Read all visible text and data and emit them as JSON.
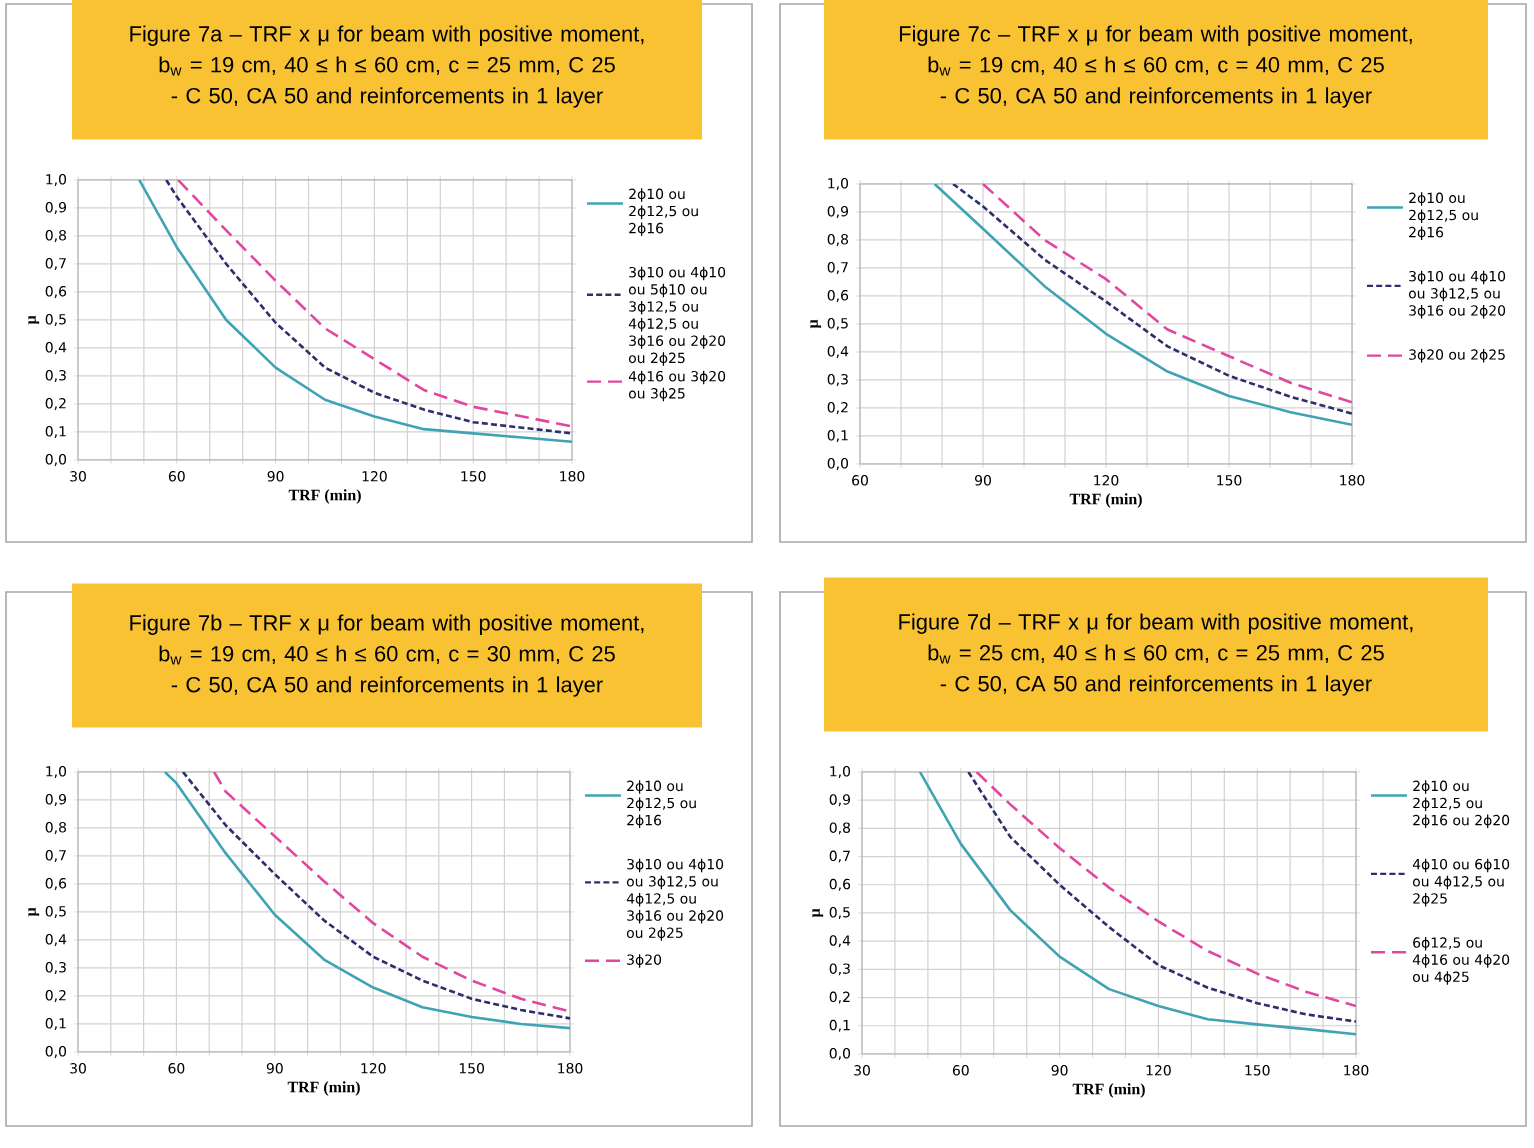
{
  "chart_data": [
    {
      "type": "line",
      "title": "Figure 7a – TRF x μ for beam with positive moment, b$_{w}$ = 19 cm, 40 ≤ h ≤ 60 cm, c = 25 mm, C 25 - C 50, CA 50 and reinforcements in 1 layer",
      "xlabel": "TRF (min)",
      "ylabel": "μ",
      "xlim": [
        30,
        180
      ],
      "ylim": [
        0,
        1
      ],
      "xticks": [
        30,
        {
          "value": 40,
          "label": null
        },
        {
          "value": 50,
          "label": null
        },
        60,
        {
          "value": 70,
          "label": null
        },
        {
          "value": 80,
          "label": null
        },
        90,
        {
          "value": 100,
          "label": null
        },
        {
          "value": 110,
          "label": null
        },
        120,
        {
          "value": 130,
          "label": null
        },
        {
          "value": 140,
          "label": null
        },
        150,
        {
          "value": 160,
          "label": null
        },
        {
          "value": 170,
          "label": null
        },
        180
      ],
      "yticks": [
        {
          "value": 0,
          "label": "0,0"
        },
        {
          "value": 0.1,
          "label": "0,1"
        },
        {
          "value": 0.2,
          "label": "0,2"
        },
        {
          "value": 0.3,
          "label": "0,3"
        },
        {
          "value": 0.4,
          "label": "0,4"
        },
        {
          "value": 0.5,
          "label": "0,5"
        },
        {
          "value": 0.6,
          "label": "0,6"
        },
        {
          "value": 0.7,
          "label": "0,7"
        },
        {
          "value": 0.8,
          "label": "0,8"
        },
        {
          "value": 0.9,
          "label": "0,9"
        },
        {
          "value": 1.0,
          "label": "1,0"
        }
      ],
      "grid": true,
      "legend": "right",
      "series": [
        {
          "name": "2ϕ10 ou 2ϕ12,5 ou 2ϕ16",
          "color": "#3fa3b4",
          "line_style": "solid",
          "x": [
            48.6,
            60,
            75,
            90,
            105,
            120,
            135,
            150,
            165,
            180
          ],
          "values": [
            1.0,
            0.76,
            0.5,
            0.33,
            0.215,
            0.155,
            0.11,
            0.095,
            0.08,
            0.065
          ]
        },
        {
          "name": "3ϕ10 ou 4ϕ10 ou 5ϕ10 ou 3ϕ12,5 ou 4ϕ12,5 ou 3ϕ16 ou 2ϕ20 ou 2ϕ25",
          "color": "#2f2d6b",
          "line_style": "dashed",
          "x": [
            56.8,
            60,
            75,
            90,
            105,
            120,
            135,
            150,
            165,
            180
          ],
          "values": [
            1.0,
            0.94,
            0.7,
            0.49,
            0.33,
            0.24,
            0.18,
            0.135,
            0.115,
            0.095
          ]
        },
        {
          "name": "4ϕ16 ou 3ϕ20 ou 3ϕ25",
          "color": "#e0479e",
          "line_style": "dashed",
          "x": [
            60.4,
            75,
            90,
            105,
            120,
            135,
            150,
            165,
            180
          ],
          "values": [
            1.0,
            0.82,
            0.64,
            0.47,
            0.36,
            0.25,
            0.19,
            0.155,
            0.12
          ]
        }
      ]
    },
    {
      "type": "line",
      "title": "Figure 7c – TRF x μ for beam with positive moment, b$_{w}$ = 19 cm, 40 ≤ h ≤ 60 cm, c = 40 mm, C 25 - C 50, CA 50 and reinforcements in 1 layer",
      "xlabel": "TRF (min)",
      "ylabel": "μ",
      "xlim": [
        60,
        180
      ],
      "ylim": [
        0,
        1
      ],
      "xticks": [
        60,
        {
          "value": 70,
          "label": null
        },
        {
          "value": 80,
          "label": null
        },
        90,
        {
          "value": 100,
          "label": null
        },
        {
          "value": 110,
          "label": null
        },
        120,
        {
          "value": 130,
          "label": null
        },
        {
          "value": 140,
          "label": null
        },
        150,
        {
          "value": 160,
          "label": null
        },
        {
          "value": 170,
          "label": null
        },
        180
      ],
      "yticks": [
        {
          "value": 0,
          "label": "0,0"
        },
        {
          "value": 0.1,
          "label": "0,1"
        },
        {
          "value": 0.2,
          "label": "0,2"
        },
        {
          "value": 0.3,
          "label": "0,3"
        },
        {
          "value": 0.4,
          "label": "0,4"
        },
        {
          "value": 0.5,
          "label": "0,5"
        },
        {
          "value": 0.6,
          "label": "0,6"
        },
        {
          "value": 0.7,
          "label": "0,7"
        },
        {
          "value": 0.8,
          "label": "0,8"
        },
        {
          "value": 0.9,
          "label": "0,9"
        },
        {
          "value": 1.0,
          "label": "1,0"
        }
      ],
      "grid": true,
      "legend": "right",
      "series": [
        {
          "name": "2ϕ10 ou 2ϕ12,5 ou 2ϕ16",
          "color": "#3fa3b4",
          "line_style": "solid",
          "x": [
            78.2,
            90,
            105,
            120,
            135,
            150,
            165,
            180
          ],
          "values": [
            1.0,
            0.84,
            0.635,
            0.465,
            0.33,
            0.243,
            0.185,
            0.14
          ]
        },
        {
          "name": "3ϕ10 ou 4ϕ10 ou 3ϕ12,5 ou 3ϕ16 ou 2ϕ20",
          "color": "#2f2d6b",
          "line_style": "dashed",
          "x": [
            82.7,
            90,
            105,
            120,
            135,
            150,
            165,
            180
          ],
          "values": [
            1.0,
            0.92,
            0.73,
            0.58,
            0.42,
            0.315,
            0.24,
            0.18
          ]
        },
        {
          "name": "3ϕ20 ou 2ϕ25",
          "color": "#e0479e",
          "line_style": "dashed",
          "x": [
            90,
            105,
            120,
            135,
            150,
            165,
            180
          ],
          "values": [
            1.0,
            0.8,
            0.66,
            0.48,
            0.385,
            0.29,
            0.22
          ]
        }
      ]
    },
    {
      "type": "line",
      "title": "Figure 7b – TRF x μ for beam with positive moment, b$_{w}$ = 19 cm, 40 ≤ h ≤ 60 cm, c = 30 mm, C 25 - C 50, CA 50 and reinforcements in 1 layer",
      "xlabel": "TRF (min)",
      "ylabel": "μ",
      "xlim": [
        30,
        180
      ],
      "ylim": [
        0,
        1
      ],
      "xticks": [
        30,
        {
          "value": 40,
          "label": null
        },
        {
          "value": 50,
          "label": null
        },
        60,
        {
          "value": 70,
          "label": null
        },
        {
          "value": 80,
          "label": null
        },
        90,
        {
          "value": 100,
          "label": null
        },
        {
          "value": 110,
          "label": null
        },
        120,
        {
          "value": 130,
          "label": null
        },
        {
          "value": 140,
          "label": null
        },
        150,
        {
          "value": 160,
          "label": null
        },
        {
          "value": 170,
          "label": null
        },
        180
      ],
      "yticks": [
        {
          "value": 0,
          "label": "0,0"
        },
        {
          "value": 0.1,
          "label": "0,1"
        },
        {
          "value": 0.2,
          "label": "0,2"
        },
        {
          "value": 0.3,
          "label": "0,3"
        },
        {
          "value": 0.4,
          "label": "0,4"
        },
        {
          "value": 0.5,
          "label": "0,5"
        },
        {
          "value": 0.6,
          "label": "0,6"
        },
        {
          "value": 0.7,
          "label": "0,7"
        },
        {
          "value": 0.8,
          "label": "0,8"
        },
        {
          "value": 0.9,
          "label": "0,9"
        },
        {
          "value": 1.0,
          "label": "1,0"
        }
      ],
      "grid": true,
      "legend": "right",
      "series": [
        {
          "name": "2ϕ10 ou 2ϕ12,5 ou 2ϕ16",
          "color": "#3fa3b4",
          "line_style": "solid",
          "x": [
            56.5,
            60,
            75,
            90,
            105,
            120,
            135,
            150,
            165,
            180
          ],
          "values": [
            1.0,
            0.96,
            0.71,
            0.49,
            0.33,
            0.23,
            0.16,
            0.125,
            0.1,
            0.085
          ]
        },
        {
          "name": "3ϕ10 ou 4ϕ10 ou 3ϕ12,5 ou 4ϕ12,5 ou 3ϕ16 ou 2ϕ20 ou 2ϕ25",
          "color": "#2f2d6b",
          "line_style": "dashed",
          "x": [
            62,
            75,
            90,
            105,
            120,
            135,
            150,
            165,
            180
          ],
          "values": [
            1.0,
            0.81,
            0.635,
            0.47,
            0.34,
            0.255,
            0.19,
            0.15,
            0.12
          ]
        },
        {
          "name": "3ϕ20",
          "color": "#e0479e",
          "line_style": "dashed",
          "x": [
            71.5,
            75,
            90,
            105,
            120,
            135,
            150,
            165,
            180
          ],
          "values": [
            1.0,
            0.93,
            0.77,
            0.61,
            0.46,
            0.34,
            0.255,
            0.19,
            0.145
          ]
        }
      ]
    },
    {
      "type": "line",
      "title": "Figure 7d – TRF x μ for beam with positive moment, b$_{w}$ = 25 cm, 40 ≤ h ≤ 60 cm, c = 25 mm, C 25 - C 50, CA 50 and reinforcements in 1 layer",
      "xlabel": "TRF (min)",
      "ylabel": "μ",
      "xlim": [
        30,
        180
      ],
      "ylim": [
        0,
        1
      ],
      "xticks": [
        30,
        {
          "value": 40,
          "label": null
        },
        {
          "value": 50,
          "label": null
        },
        60,
        {
          "value": 70,
          "label": null
        },
        {
          "value": 80,
          "label": null
        },
        90,
        {
          "value": 100,
          "label": null
        },
        {
          "value": 110,
          "label": null
        },
        120,
        {
          "value": 130,
          "label": null
        },
        {
          "value": 140,
          "label": null
        },
        150,
        {
          "value": 160,
          "label": null
        },
        {
          "value": 170,
          "label": null
        },
        180
      ],
      "yticks": [
        {
          "value": 0,
          "label": "0,0"
        },
        {
          "value": 0.1,
          "label": "0,1"
        },
        {
          "value": 0.2,
          "label": "0,2"
        },
        {
          "value": 0.3,
          "label": "0,3"
        },
        {
          "value": 0.4,
          "label": "0,4"
        },
        {
          "value": 0.5,
          "label": "0,5"
        },
        {
          "value": 0.6,
          "label": "0,6"
        },
        {
          "value": 0.7,
          "label": "0,7"
        },
        {
          "value": 0.8,
          "label": "0,8"
        },
        {
          "value": 0.9,
          "label": "0,9"
        },
        {
          "value": 1.0,
          "label": "1,0"
        }
      ],
      "grid": true,
      "legend": "right",
      "series": [
        {
          "name": "2ϕ10 ou 2ϕ12,5 ou 2ϕ16 ou 2ϕ20",
          "color": "#3fa3b4",
          "line_style": "solid",
          "x": [
            47.6,
            60,
            75,
            90,
            105,
            120,
            135,
            150,
            165,
            180
          ],
          "values": [
            1.0,
            0.745,
            0.51,
            0.345,
            0.23,
            0.17,
            0.123,
            0.105,
            0.088,
            0.07
          ]
        },
        {
          "name": "4ϕ10 ou 6ϕ10 ou 4ϕ12,5 ou 2ϕ25",
          "color": "#2f2d6b",
          "line_style": "dashed",
          "x": [
            62.3,
            75,
            90,
            105,
            120,
            135,
            150,
            165,
            180
          ],
          "values": [
            1.0,
            0.77,
            0.6,
            0.45,
            0.315,
            0.235,
            0.18,
            0.14,
            0.115
          ]
        },
        {
          "name": "6ϕ12,5 ou 4ϕ16 ou 4ϕ20 ou 4ϕ25",
          "color": "#e0479e",
          "line_style": "dashed",
          "x": [
            64.8,
            75,
            90,
            105,
            120,
            135,
            150,
            165,
            180
          ],
          "values": [
            1.0,
            0.885,
            0.73,
            0.59,
            0.47,
            0.365,
            0.285,
            0.22,
            0.17
          ]
        }
      ]
    }
  ]
}
